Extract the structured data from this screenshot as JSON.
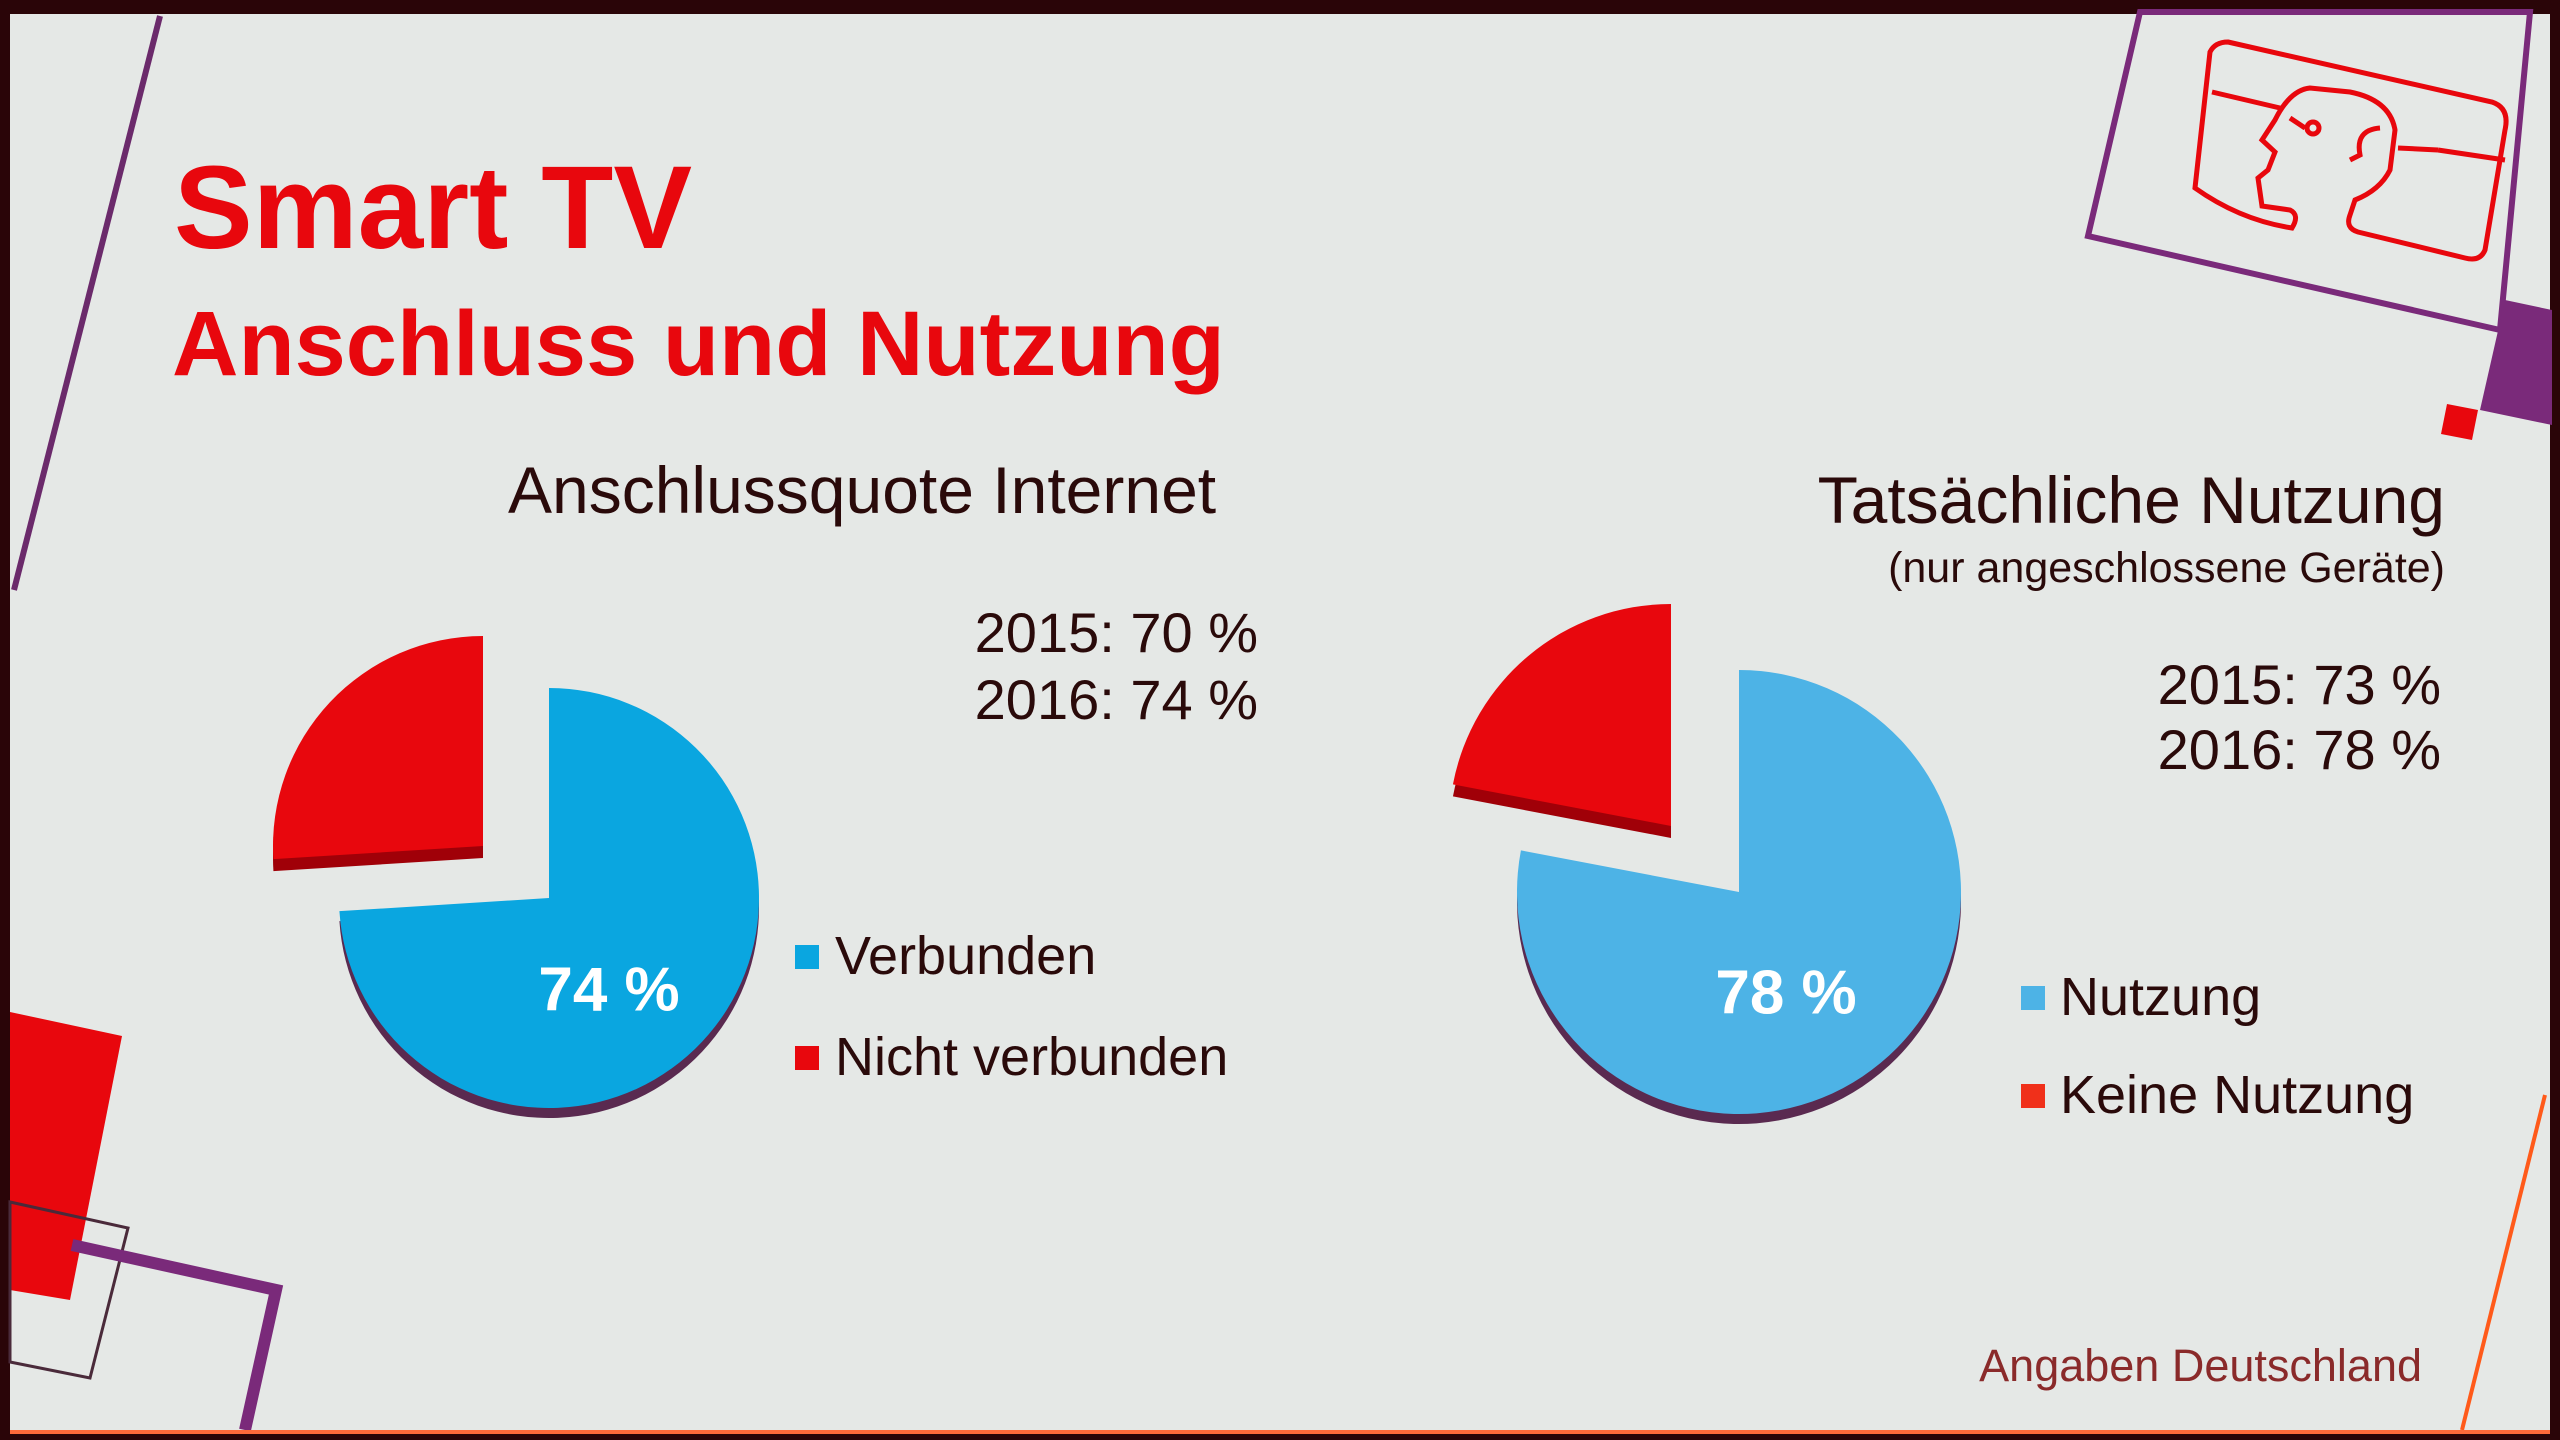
{
  "title": "Smart TV",
  "subtitle": "Anschluss und Nutzung",
  "footer": "Angaben Deutschland",
  "colors": {
    "accent": "#e8070d",
    "purple": "#7a2a7a",
    "blue_left": "#0aa6e0",
    "blue_right": "#4db3e6"
  },
  "chart_data": [
    {
      "type": "pie",
      "title": "Anschlussquote Internet",
      "notes": [
        "2015: 70 %",
        "2016: 74 %"
      ],
      "categories": [
        "Verbunden",
        "Nicht verbunden"
      ],
      "values": [
        74,
        26
      ],
      "data_label": "74 %",
      "legend": "right"
    },
    {
      "type": "pie",
      "title": "Tatsächliche Nutzung",
      "subtitle": "(nur angeschlossene Geräte)",
      "notes": [
        "2015: 73 %",
        "2016: 78 %"
      ],
      "categories": [
        "Nutzung",
        "Keine Nutzung"
      ],
      "values": [
        78,
        22
      ],
      "data_label": "78 %",
      "legend": "right"
    }
  ]
}
